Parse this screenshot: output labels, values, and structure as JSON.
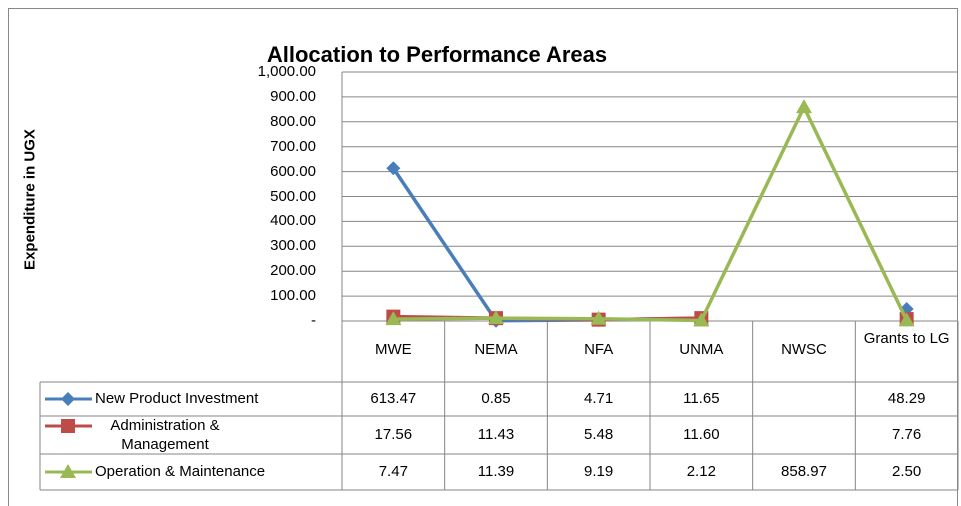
{
  "chart_data": {
    "type": "line",
    "title": "Allocation to Performance Areas",
    "y_label": "Expenditure in UGX",
    "categories": [
      "MWE",
      "NEMA",
      "NFA",
      "UNMA",
      "NWSC",
      "Grants to LG"
    ],
    "series": [
      {
        "name": "New Product Investment",
        "color": "#4a7ebb",
        "marker": "diamond",
        "values": [
          613.47,
          0.85,
          4.71,
          11.65,
          null,
          48.29
        ],
        "value_labels": [
          "613.47",
          "0.85",
          "4.71",
          "11.65",
          null,
          "48.29"
        ]
      },
      {
        "name": "Administration & Management",
        "color": "#be4b48",
        "marker": "square",
        "values": [
          17.56,
          11.43,
          5.48,
          11.6,
          null,
          7.76
        ],
        "value_labels": [
          "17.56",
          "11.43",
          "5.48",
          "11.60",
          null,
          "7.76"
        ]
      },
      {
        "name": "Operation & Maintenance",
        "color": "#98b954",
        "marker": "triangle",
        "values": [
          7.47,
          11.39,
          9.19,
          2.12,
          858.97,
          2.5
        ],
        "value_labels": [
          "7.47",
          "11.39",
          "9.19",
          "2.12",
          "858.97",
          "2.50"
        ]
      }
    ],
    "ylim": [
      0,
      1000
    ],
    "yticks": [
      {
        "value": 0,
        "label": "-"
      },
      {
        "value": 100,
        "label": "100.00"
      },
      {
        "value": 200,
        "label": "200.00"
      },
      {
        "value": 300,
        "label": "300.00"
      },
      {
        "value": 400,
        "label": "400.00"
      },
      {
        "value": 500,
        "label": "500.00"
      },
      {
        "value": 600,
        "label": "600.00"
      },
      {
        "value": 700,
        "label": "700.00"
      },
      {
        "value": 800,
        "label": "800.00"
      },
      {
        "value": 900,
        "label": "900.00"
      },
      {
        "value": 1000,
        "label": "1,000.00"
      }
    ],
    "grid": true
  }
}
